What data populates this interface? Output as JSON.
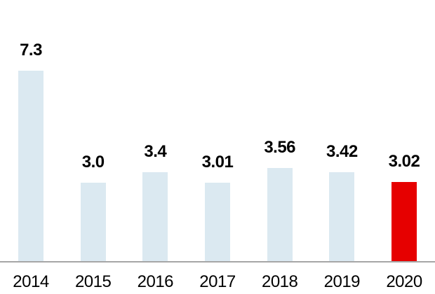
{
  "chart_data": {
    "type": "bar",
    "categories": [
      "2014",
      "2015",
      "2016",
      "2017",
      "2018",
      "2019",
      "2020"
    ],
    "values": [
      7.3,
      3.0,
      3.4,
      3.01,
      3.56,
      3.42,
      3.02
    ],
    "value_labels": [
      "7.3",
      "3.0",
      "3.4",
      "3.01",
      "3.56",
      "3.42",
      "3.02"
    ],
    "highlight_index": 6,
    "title": "",
    "xlabel": "",
    "ylabel": "",
    "ylim": [
      0,
      7.3
    ],
    "grid": "off",
    "legend": "none",
    "colors": {
      "bar_default": "#dbe9f1",
      "bar_highlight": "#e60000",
      "axis_line": "#a6a6a6",
      "label_text": "#000000"
    }
  }
}
